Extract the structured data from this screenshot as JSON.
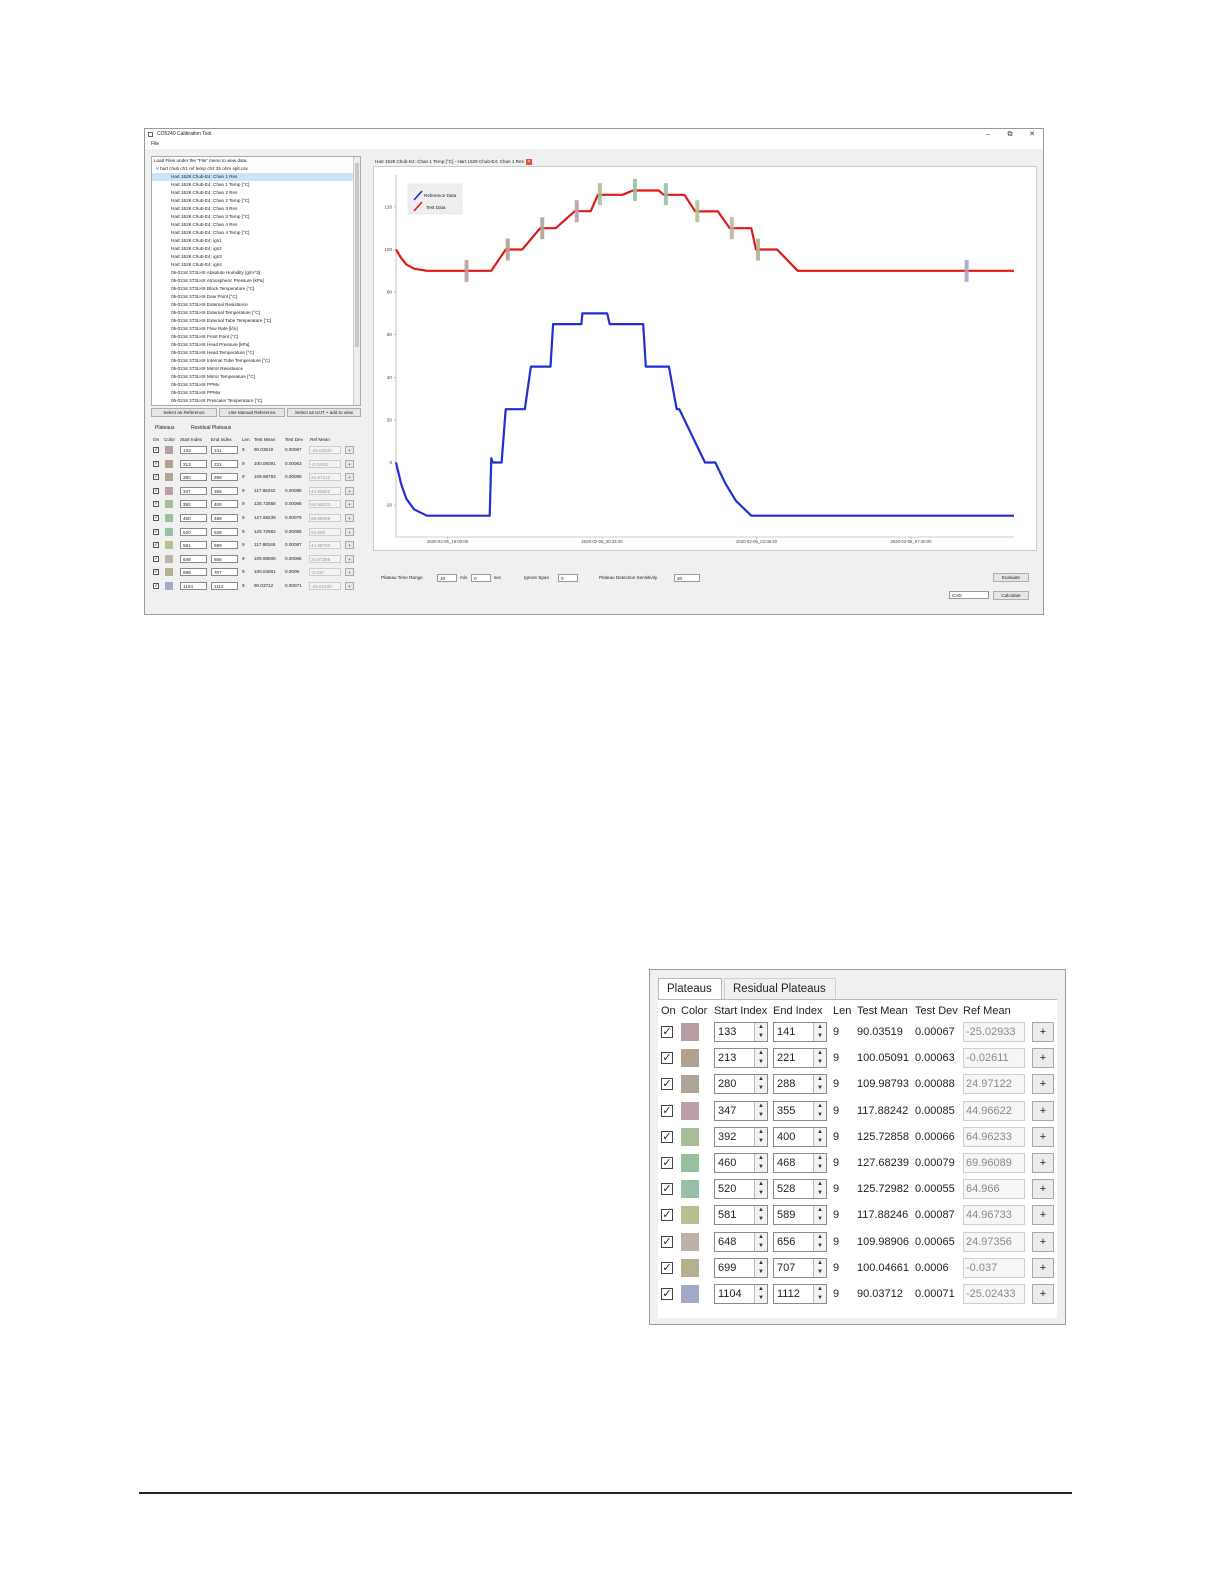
{
  "window": {
    "title": "CO5240 Calibration Tool",
    "minimize": "–",
    "restore": "⧉",
    "close": "✕",
    "menu": [
      "File"
    ]
  },
  "tree": {
    "items": [
      "Load Files under the \"File\" menu to view data",
      "˅  hart chub ch1 ref temp ch3 25 ohm spit.csv",
      "Hart 1529 Chub-E4: Chan 1 Res",
      "Hart 1529 Chub-E4: Chan 1 Temp [°C]",
      "Hart 1529 Chub-E4: Chan 2 Res",
      "Hart 1529 Chub-E4: Chan 2 Temp [°C]",
      "Hart 1529 Chub-E4: Chan 3 Res",
      "Hart 1529 Chub-E4: Chan 3 Temp [°C]",
      "Hart 1529 Chub-E4: Chan 4 Res",
      "Hart 1529 Chub-E4: Chan 4 Temp [°C]",
      "Hart 1529 Chub-E4: ign1",
      "Hart 1529 Chub-E4: ign2",
      "Hart 1529 Chub-E4: ign3",
      "Hart 1529 Chub-E4: ign4",
      "05-0218 373LHX Absolute Humidity [g/m^3]",
      "05-0218 373LHX Atmospheric Pressure [kPa]",
      "05-0218 373LHX Block Temperature [°C]",
      "05-0218 373LHX Dew Point [°C]",
      "05-0218 373LHX External Resistance",
      "05-0218 373LHX External Temperature [°C]",
      "05-0218 373LHX External Tube Temperature [°C]",
      "05-0218 373LHX Flow Rate [l/m]",
      "05-0218 373LHX Frost Point [°C]",
      "05-0218 373LHX Head Pressure [kPa]",
      "05-0218 373LHX Head Temperature [°C]",
      "05-0218 373LHX Internal Tube Temperature [°C]",
      "05-0218 373LHX Mirror Resistance",
      "05-0218 373LHX Mirror Temperature [°C]",
      "05-0218 373LHX PPMv",
      "05-0218 373LHX PPMw",
      "05-0218 373LHX Prescaler Temperature [°C]"
    ],
    "selected_index": 2
  },
  "tree_buttons": {
    "select_reference": "Select as Reference",
    "manual_reference": "Use Manual Reference",
    "select_uut": "Select as UUT + add to view"
  },
  "plateau_tabs": [
    "Plateaus",
    "Residual Plateaus"
  ],
  "plateau_headers": [
    "On",
    "Color",
    "Start Index",
    "End Index",
    "Len",
    "Test Mean",
    "Test Dev",
    "Ref Mean"
  ],
  "plateaus": [
    {
      "on": true,
      "color": "#b89ea2",
      "start": "133",
      "end": "141",
      "len": "9",
      "test_mean": "90.03519",
      "test_dev": "0.00067",
      "ref_mean": "-25.02933",
      "plus": "+"
    },
    {
      "on": true,
      "color": "#b3a090",
      "start": "213",
      "end": "221",
      "len": "9",
      "test_mean": "100.05091",
      "test_dev": "0.00063",
      "ref_mean": "-0.02611",
      "plus": "+"
    },
    {
      "on": true,
      "color": "#ada596",
      "start": "280",
      "end": "288",
      "len": "9",
      "test_mean": "109.98793",
      "test_dev": "0.00088",
      "ref_mean": "24.97122",
      "plus": "+"
    },
    {
      "on": true,
      "color": "#bc9ea8",
      "start": "347",
      "end": "355",
      "len": "9",
      "test_mean": "117.88242",
      "test_dev": "0.00085",
      "ref_mean": "44.96622",
      "plus": "+"
    },
    {
      "on": true,
      "color": "#a8bc98",
      "start": "392",
      "end": "400",
      "len": "9",
      "test_mean": "125.72858",
      "test_dev": "0.00066",
      "ref_mean": "64.96233",
      "plus": "+"
    },
    {
      "on": true,
      "color": "#98c09e",
      "start": "460",
      "end": "468",
      "len": "9",
      "test_mean": "127.68239",
      "test_dev": "0.00079",
      "ref_mean": "69.96089",
      "plus": "+"
    },
    {
      "on": true,
      "color": "#98c0a8",
      "start": "520",
      "end": "528",
      "len": "9",
      "test_mean": "125.72982",
      "test_dev": "0.00055",
      "ref_mean": "64.966",
      "plus": "+"
    },
    {
      "on": true,
      "color": "#b6c090",
      "start": "581",
      "end": "589",
      "len": "9",
      "test_mean": "117.88246",
      "test_dev": "0.00087",
      "ref_mean": "44.96733",
      "plus": "+"
    },
    {
      "on": true,
      "color": "#bcb2a8",
      "start": "648",
      "end": "656",
      "len": "9",
      "test_mean": "109.98906",
      "test_dev": "0.00065",
      "ref_mean": "24.97356",
      "plus": "+"
    },
    {
      "on": true,
      "color": "#b4b090",
      "start": "699",
      "end": "707",
      "len": "9",
      "test_mean": "100.04661",
      "test_dev": "0.0006",
      "ref_mean": "-0.037",
      "plus": "+"
    },
    {
      "on": true,
      "color": "#a4aac4",
      "start": "1104",
      "end": "1112",
      "len": "9",
      "test_mean": "90.03712",
      "test_dev": "0.00071",
      "ref_mean": "-25.02433",
      "plus": "+"
    }
  ],
  "plot_tab": {
    "label": "Hart 1529 Chub-E4: Chan 1 Temp [°C] - Hart 1529 Chub-E4: Chan 1 Res",
    "close": "×"
  },
  "chart_data": {
    "type": "line",
    "legend": [
      "Reference Data",
      "Test Data"
    ],
    "legend_position": "top-left",
    "series_colors": {
      "reference": "#1f2fd0",
      "test": "#e01818"
    },
    "y_ticks": [
      "120",
      "100",
      "80",
      "60",
      "40",
      "20",
      "0",
      "-20"
    ],
    "ylim": [
      -35,
      135
    ],
    "x_ticks": [
      "2020-02-05_19:00:00",
      "2020-02-05_20:33:20",
      "2020-02-06_02:06:40",
      "2020-02-06_07:40:00"
    ],
    "xlim": [
      0,
      1200
    ],
    "series": [
      {
        "name": "Test Data",
        "x": [
          0,
          10,
          20,
          35,
          60,
          100,
          140,
          155,
          185,
          213,
          221,
          230,
          245,
          280,
          288,
          295,
          310,
          347,
          355,
          362,
          378,
          392,
          400,
          405,
          440,
          460,
          468,
          473,
          510,
          520,
          528,
          535,
          560,
          581,
          589,
          596,
          625,
          648,
          656,
          662,
          690,
          699,
          707,
          712,
          740,
          780,
          900,
          1000,
          1104,
          1112,
          1140,
          1200
        ],
        "y": [
          100,
          96,
          93,
          91,
          90,
          90,
          90,
          90,
          90,
          100,
          100,
          100,
          100,
          110,
          110,
          110,
          110,
          118,
          118,
          118,
          118,
          125.7,
          125.7,
          125.7,
          125.7,
          127.7,
          127.7,
          127.7,
          127.7,
          125.7,
          125.7,
          125.7,
          125.7,
          117.9,
          117.9,
          117.9,
          117.9,
          110,
          110,
          110,
          110,
          100,
          100,
          100,
          100,
          90,
          90,
          90,
          90,
          90,
          90,
          90
        ]
      },
      {
        "name": "Reference Data",
        "x": [
          0,
          10,
          20,
          35,
          60,
          100,
          140,
          150,
          170,
          182,
          185,
          188,
          205,
          213,
          221,
          230,
          250,
          262,
          265,
          270,
          290,
          300,
          305,
          345,
          360,
          362,
          370,
          400,
          410,
          415,
          460,
          480,
          485,
          500,
          530,
          545,
          550,
          600,
          620,
          640,
          660,
          690,
          740,
          780,
          900,
          1000,
          1100,
          1200
        ],
        "y": [
          0,
          -10,
          -17,
          -22,
          -25,
          -25,
          -25,
          -25,
          -25,
          -25,
          2,
          0,
          0,
          25,
          25,
          25,
          25,
          45,
          45,
          45,
          45,
          45,
          65,
          65,
          65,
          70,
          70,
          70,
          70,
          65,
          65,
          65,
          45,
          45,
          45,
          25,
          25,
          0,
          0,
          -10,
          -18,
          -25,
          -25,
          -25,
          -25,
          -25,
          -25,
          -25
        ]
      }
    ],
    "plateau_markers": [
      {
        "x": 137,
        "y": 90
      },
      {
        "x": 217,
        "y": 100
      },
      {
        "x": 284,
        "y": 110
      },
      {
        "x": 351,
        "y": 118
      },
      {
        "x": 396,
        "y": 126
      },
      {
        "x": 464,
        "y": 128
      },
      {
        "x": 524,
        "y": 126
      },
      {
        "x": 585,
        "y": 118
      },
      {
        "x": 652,
        "y": 110
      },
      {
        "x": 703,
        "y": 100
      },
      {
        "x": 1108,
        "y": 90
      }
    ]
  },
  "controls": {
    "plateau_time_range": "Plateau Time Range",
    "min_value": "10",
    "min_label": "min",
    "sec_value": "0",
    "sec_label": "sec",
    "ignore_span": "Ignore Span",
    "ignore_value": "0",
    "sensitivity": "Plateau Detection Sensitivity",
    "sensitivity_value": "20",
    "evaluate": "Evaluate",
    "mode": "CVD",
    "calculate": "Calculate"
  }
}
